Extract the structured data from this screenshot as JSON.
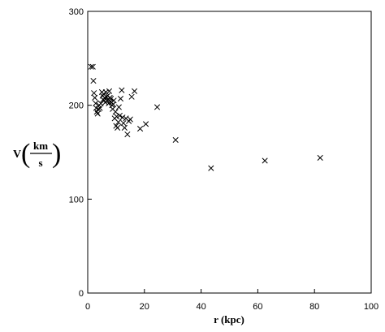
{
  "chart_data": {
    "type": "scatter",
    "title": "",
    "xlabel": "r (kpc)",
    "ylabel": {
      "symbol": "V",
      "numerator": "km",
      "denominator": "s"
    },
    "xlim": [
      0,
      100
    ],
    "ylim": [
      0,
      300
    ],
    "x_ticks": [
      0,
      20,
      40,
      60,
      80,
      100
    ],
    "y_ticks": [
      0,
      100,
      200,
      300
    ],
    "x_tick_labels": [
      "0",
      "20",
      "40",
      "60",
      "80",
      "100"
    ],
    "y_tick_labels": [
      "0",
      "100",
      "200",
      "300"
    ],
    "grid": false,
    "marker": "x",
    "marker_color": "#000000",
    "points": [
      [
        1.2,
        241
      ],
      [
        1.8,
        241
      ],
      [
        2.0,
        226
      ],
      [
        2.2,
        213
      ],
      [
        2.5,
        208
      ],
      [
        2.8,
        202
      ],
      [
        3.0,
        197
      ],
      [
        3.2,
        193
      ],
      [
        3.5,
        191
      ],
      [
        3.8,
        196
      ],
      [
        4.0,
        200
      ],
      [
        4.3,
        197
      ],
      [
        4.6,
        202
      ],
      [
        5.0,
        214
      ],
      [
        5.2,
        210
      ],
      [
        5.4,
        206
      ],
      [
        5.6,
        212
      ],
      [
        5.8,
        205
      ],
      [
        6.0,
        208
      ],
      [
        6.2,
        203
      ],
      [
        6.4,
        214
      ],
      [
        6.6,
        209
      ],
      [
        6.8,
        205
      ],
      [
        7.0,
        210
      ],
      [
        7.2,
        206
      ],
      [
        7.4,
        202
      ],
      [
        7.6,
        215
      ],
      [
        7.8,
        208
      ],
      [
        8.0,
        204
      ],
      [
        8.2,
        207
      ],
      [
        8.4,
        203
      ],
      [
        8.6,
        200
      ],
      [
        8.8,
        196
      ],
      [
        9.0,
        201
      ],
      [
        9.2,
        205
      ],
      [
        9.5,
        186
      ],
      [
        9.8,
        193
      ],
      [
        10.0,
        178
      ],
      [
        10.2,
        188
      ],
      [
        10.5,
        176
      ],
      [
        10.8,
        182
      ],
      [
        11.0,
        198
      ],
      [
        11.3,
        189
      ],
      [
        11.6,
        207
      ],
      [
        12.0,
        216
      ],
      [
        12.3,
        187
      ],
      [
        12.6,
        181
      ],
      [
        13.0,
        176
      ],
      [
        13.5,
        186
      ],
      [
        14.0,
        169
      ],
      [
        14.5,
        183
      ],
      [
        15.0,
        185
      ],
      [
        15.5,
        209
      ],
      [
        16.5,
        215
      ],
      [
        18.5,
        175
      ],
      [
        20.5,
        180
      ],
      [
        24.5,
        198
      ],
      [
        31.0,
        163
      ],
      [
        43.5,
        133
      ],
      [
        62.5,
        141
      ],
      [
        82.0,
        144
      ]
    ]
  }
}
